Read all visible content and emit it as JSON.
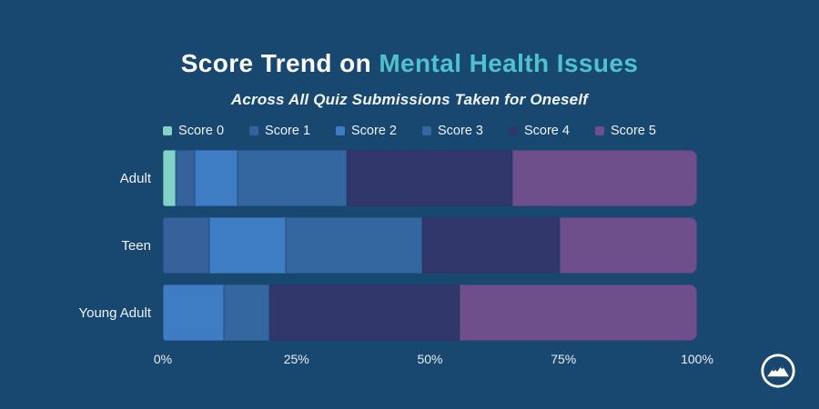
{
  "title": {
    "prefix": "Score Trend on ",
    "highlight": "Mental Health Issues"
  },
  "subtitle": "Across All Quiz Submissions Taken for Oneself",
  "colors": {
    "background": "#18476F",
    "title_text": "#FFFFFF",
    "title_highlight": "#4FC2CE",
    "label_text": "#F0F4F9"
  },
  "logo_icon": "mountain-in-circle",
  "chart_data": {
    "type": "bar",
    "stacked": true,
    "orientation": "horizontal",
    "title": "Score Trend on Mental Health Issues",
    "subtitle": "Across All Quiz Submissions Taken for Oneself",
    "categories": [
      "Adult",
      "Teen",
      "Young Adult"
    ],
    "series": [
      {
        "name": "Score 0",
        "color": "#82D3C7",
        "values": [
          2.4,
          0,
          0
        ]
      },
      {
        "name": "Score 1",
        "color": "#36619B",
        "values": [
          3.6,
          8.7,
          0
        ]
      },
      {
        "name": "Score 2",
        "color": "#3E7CC3",
        "values": [
          8.0,
          14.3,
          11.4
        ]
      },
      {
        "name": "Score 3",
        "color": "#34679F",
        "values": [
          20.5,
          25.6,
          8.6
        ]
      },
      {
        "name": "Score 4",
        "color": "#32376B",
        "values": [
          31.0,
          25.7,
          35.6
        ]
      },
      {
        "name": "Score 5",
        "color": "#6F4E8C",
        "values": [
          34.5,
          25.7,
          44.4
        ]
      }
    ],
    "x_ticks": [
      "0%",
      "25%",
      "50%",
      "75%",
      "100%"
    ],
    "xlim": [
      0,
      100
    ],
    "x_unit": "percent",
    "legend_position": "top",
    "grid": false
  }
}
